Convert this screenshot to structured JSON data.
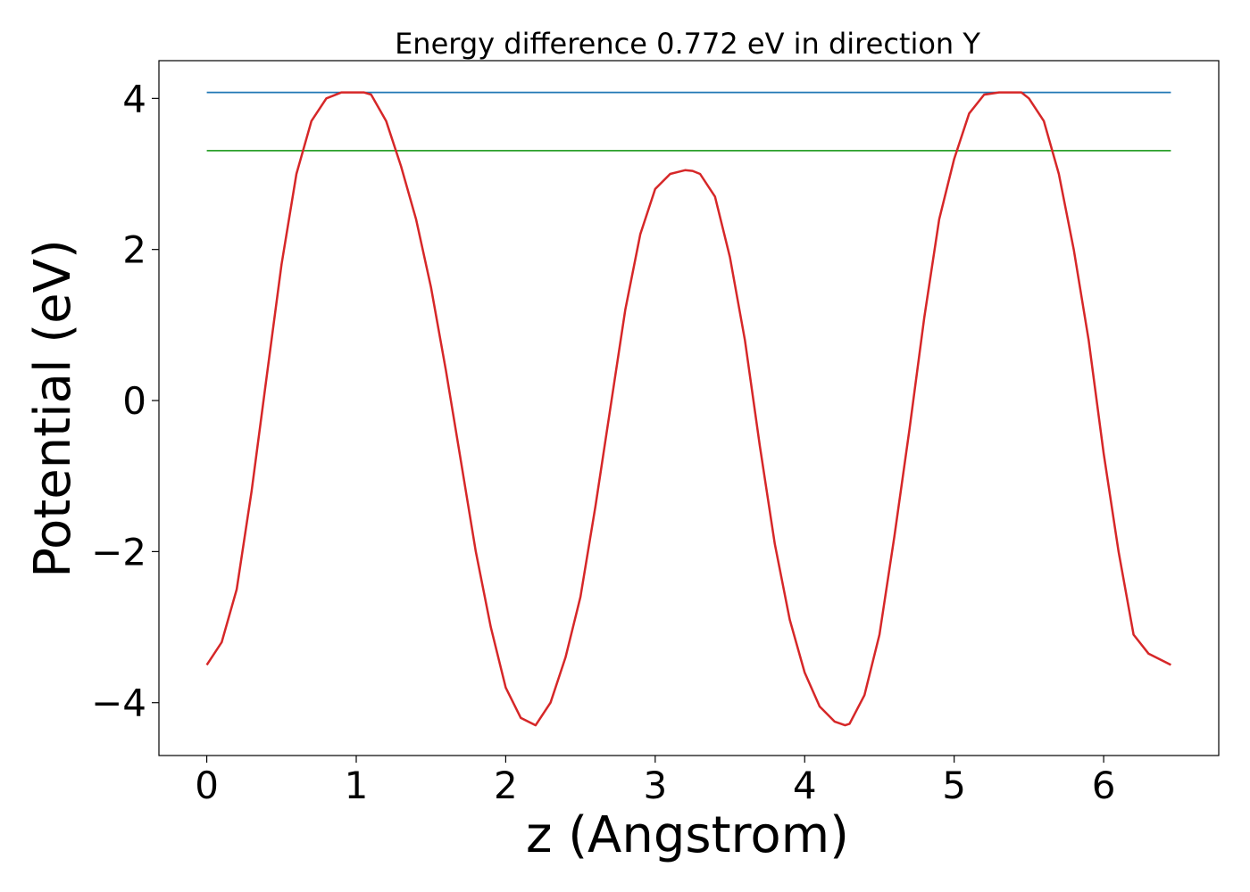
{
  "chart_data": {
    "type": "line",
    "title": "Energy difference 0.772 eV in direction Y",
    "xlabel": "z (Angstrom)",
    "ylabel": "Potential (eV)",
    "xlim": [
      -0.32,
      6.77
    ],
    "ylim": [
      -4.7,
      4.5
    ],
    "xticks": [
      0,
      1,
      2,
      3,
      4,
      5,
      6
    ],
    "xtick_labels": [
      "0",
      "1",
      "2",
      "3",
      "4",
      "5",
      "6"
    ],
    "yticks": [
      -4,
      -2,
      0,
      2,
      4
    ],
    "ytick_labels": [
      "−4",
      "−2",
      "0",
      "2",
      "4"
    ],
    "grid": false,
    "legend": "none",
    "colors": {
      "potential": "#d62728",
      "max_level": "#1f77b4",
      "mean_level": "#2ca02c"
    },
    "series": [
      {
        "key": "potential",
        "x": [
          0.0,
          0.1,
          0.2,
          0.3,
          0.4,
          0.5,
          0.6,
          0.7,
          0.8,
          0.9,
          1.0,
          1.05,
          1.1,
          1.2,
          1.3,
          1.4,
          1.5,
          1.6,
          1.7,
          1.8,
          1.9,
          2.0,
          2.1,
          2.2,
          2.3,
          2.4,
          2.5,
          2.6,
          2.7,
          2.8,
          2.9,
          3.0,
          3.1,
          3.2,
          3.25,
          3.3,
          3.4,
          3.5,
          3.6,
          3.7,
          3.8,
          3.9,
          4.0,
          4.1,
          4.2,
          4.27,
          4.3,
          4.4,
          4.5,
          4.6,
          4.7,
          4.8,
          4.9,
          5.0,
          5.1,
          5.2,
          5.3,
          5.4,
          5.45,
          5.5,
          5.6,
          5.7,
          5.8,
          5.9,
          6.0,
          6.1,
          6.2,
          6.3,
          6.45
        ],
        "y": [
          -3.5,
          -3.2,
          -2.5,
          -1.2,
          0.3,
          1.8,
          3.0,
          3.7,
          4.0,
          4.08,
          4.08,
          4.08,
          4.05,
          3.7,
          3.1,
          2.4,
          1.5,
          0.4,
          -0.8,
          -2.0,
          -3.0,
          -3.8,
          -4.2,
          -4.3,
          -4.0,
          -3.4,
          -2.6,
          -1.4,
          -0.1,
          1.2,
          2.2,
          2.8,
          3.0,
          3.05,
          3.04,
          3.0,
          2.7,
          1.9,
          0.8,
          -0.6,
          -1.9,
          -2.9,
          -3.6,
          -4.05,
          -4.25,
          -4.3,
          -4.28,
          -3.9,
          -3.1,
          -1.8,
          -0.4,
          1.1,
          2.4,
          3.2,
          3.8,
          4.05,
          4.08,
          4.08,
          4.08,
          4.0,
          3.7,
          3.0,
          2.0,
          0.8,
          -0.7,
          -2.0,
          -3.1,
          -3.35,
          -3.5
        ]
      },
      {
        "key": "max_level",
        "x": [
          0.0,
          6.45
        ],
        "y": [
          4.08,
          4.08
        ]
      },
      {
        "key": "mean_level",
        "x": [
          0.0,
          6.45
        ],
        "y": [
          3.308,
          3.308
        ]
      }
    ]
  }
}
